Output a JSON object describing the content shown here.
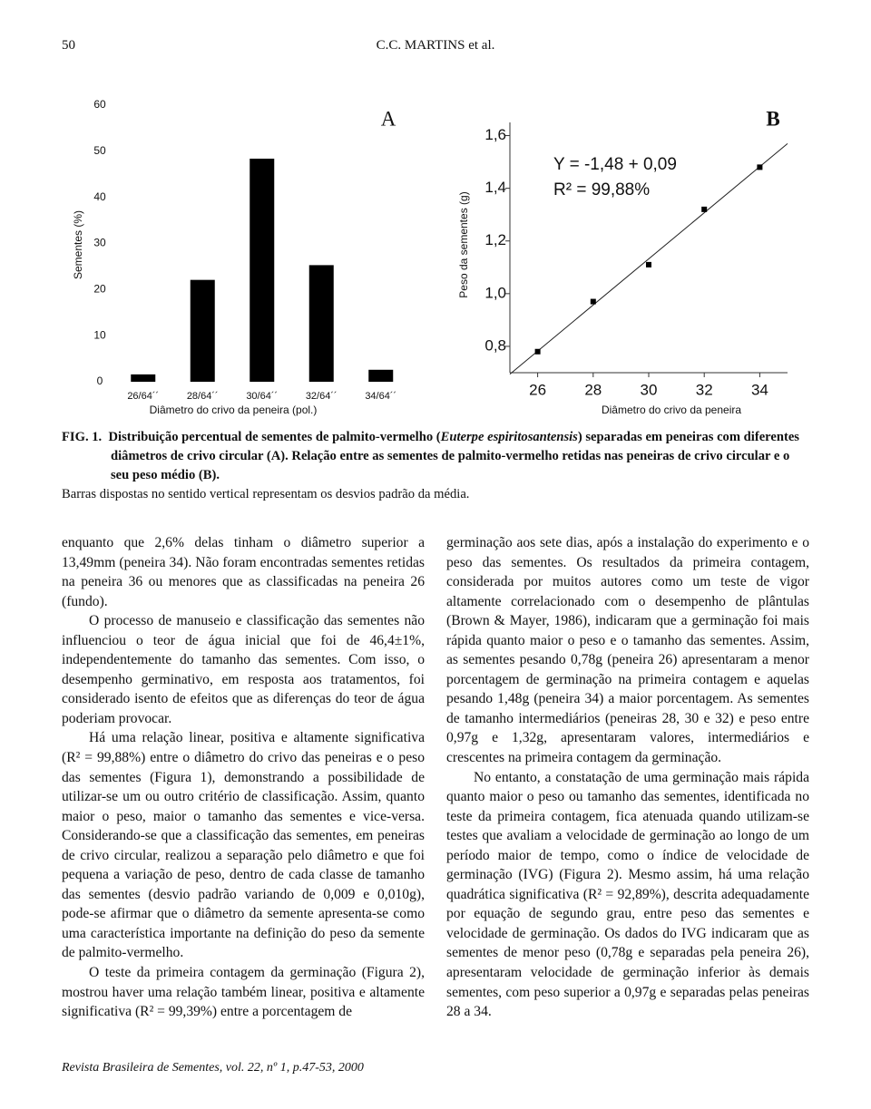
{
  "header": {
    "page_number": "50",
    "running_title": "C.C. MARTINS et al."
  },
  "chart_data": [
    {
      "type": "bar",
      "annotation": "A",
      "ylabel": "Sementes (%)",
      "xlabel": "Diâmetro do crivo da peneira (pol.)",
      "categories": [
        "26/64´´",
        "28/64´´",
        "30/64´´",
        "32/64´´",
        "34/64´´"
      ],
      "values": [
        1.6,
        22.1,
        48.4,
        25.3,
        2.6
      ],
      "color": "#000000",
      "ylim": [
        0,
        60
      ],
      "yticks": [
        0,
        10,
        20,
        30,
        40,
        50,
        60
      ]
    },
    {
      "type": "scatter",
      "annotation": "B",
      "ylabel": "Peso da sementes (g)",
      "xlabel": "Diâmetro do crivo da peneira",
      "equation": "Y = -1,48 + 0,09",
      "r_squared": "R² = 99,88%",
      "x": [
        26,
        28,
        30,
        32,
        34
      ],
      "values": [
        0.78,
        0.97,
        1.11,
        1.32,
        1.48
      ],
      "color": "#000000",
      "trendline": true,
      "xlim": [
        25,
        35
      ],
      "xticks": [
        26,
        28,
        30,
        32,
        34
      ],
      "ylim": [
        0.7,
        1.65
      ],
      "yticks": [
        {
          "value": 0.8,
          "label": "0,8"
        },
        {
          "value": 1.0,
          "label": "1,0"
        },
        {
          "value": 1.2,
          "label": "1,2"
        },
        {
          "value": 1.4,
          "label": "1,4"
        },
        {
          "value": 1.6,
          "label": "1,6"
        }
      ]
    }
  ],
  "caption": {
    "label": "FIG. 1.",
    "text1": "Distribuição percentual de sementes de palmito-vermelho (",
    "species": "Euterpe espiritosantensis",
    "text2": ") separadas em peneiras com diferentes diâmetros de crivo circular (A). Relação entre as sementes de palmito-vermelho retidas nas peneiras de crivo circular e o seu peso médio (B).",
    "note": "Barras dispostas no sentido vertical representam os desvios padrão da média."
  },
  "body": {
    "left": [
      "enquanto que 2,6% delas tinham o diâmetro superior a 13,49mm (peneira 34). Não foram encontradas sementes retidas na peneira 36 ou menores que as classificadas na peneira 26 (fundo).",
      "O processo de manuseio e classificação das sementes não influenciou o teor de água inicial que foi de 46,4±1%, independentemente do tamanho das sementes. Com isso, o desempenho germinativo, em resposta aos tratamentos, foi considerado isento de efeitos que as diferenças do teor de água poderiam provocar.",
      "Há uma relação linear, positiva e altamente significativa (R² = 99,88%) entre o diâmetro do crivo das peneiras e o peso das sementes (Figura 1), demonstrando a possibilidade de utilizar-se um ou outro critério de classificação. Assim, quanto maior o peso, maior o tamanho das sementes e vice-versa. Considerando-se que a classificação das sementes, em peneiras de crivo circular, realizou a separação pelo diâmetro e que foi pequena a variação de peso, dentro de cada classe de tamanho das sementes (desvio padrão variando de 0,009 e 0,010g), pode-se afirmar que o diâmetro da semente apresenta-se como uma característica importante na definição do peso da semente de palmito-vermelho.",
      "O teste da primeira contagem da germinação (Figura 2), mostrou haver uma relação também linear, positiva e altamente significativa (R² = 99,39%) entre a porcentagem de"
    ],
    "right": [
      "germinação aos sete dias, após a instalação do experimento e o peso das sementes. Os resultados da primeira contagem, considerada por muitos autores como um teste de vigor altamente correlacionado com o desempenho de plântulas (Brown & Mayer, 1986), indicaram que a germinação foi mais rápida quanto maior o peso e o tamanho das sementes. Assim, as sementes pesando 0,78g (peneira 26) apresentaram a menor porcentagem de germinação na primeira contagem e aquelas pesando 1,48g (peneira 34) a maior porcentagem. As sementes de tamanho intermediários (peneiras 28, 30 e 32) e peso entre 0,97g e 1,32g, apresentaram valores, intermediários e crescentes na primeira contagem da germinação.",
      "No entanto, a constatação de uma germinação mais rápida quanto maior o peso ou tamanho das sementes, identificada no teste da primeira contagem, fica atenuada quando utilizam-se testes que avaliam a velocidade de germinação ao longo de um período maior de tempo, como o índice de velocidade de germinação (IVG) (Figura 2). Mesmo assim, há uma relação quadrática significativa (R² = 92,89%), descrita adequadamente por equação de segundo grau, entre peso das sementes e velocidade de germinação. Os dados do IVG indicaram que as sementes de menor peso (0,78g e separadas pela peneira 26), apresentaram velocidade de germinação inferior às demais sementes, com peso superior a 0,97g e separadas pelas peneiras 28 a 34."
    ]
  },
  "footer": {
    "citation": "Revista Brasileira de Sementes, vol. 22, nº 1, p.47-53, 2000"
  }
}
